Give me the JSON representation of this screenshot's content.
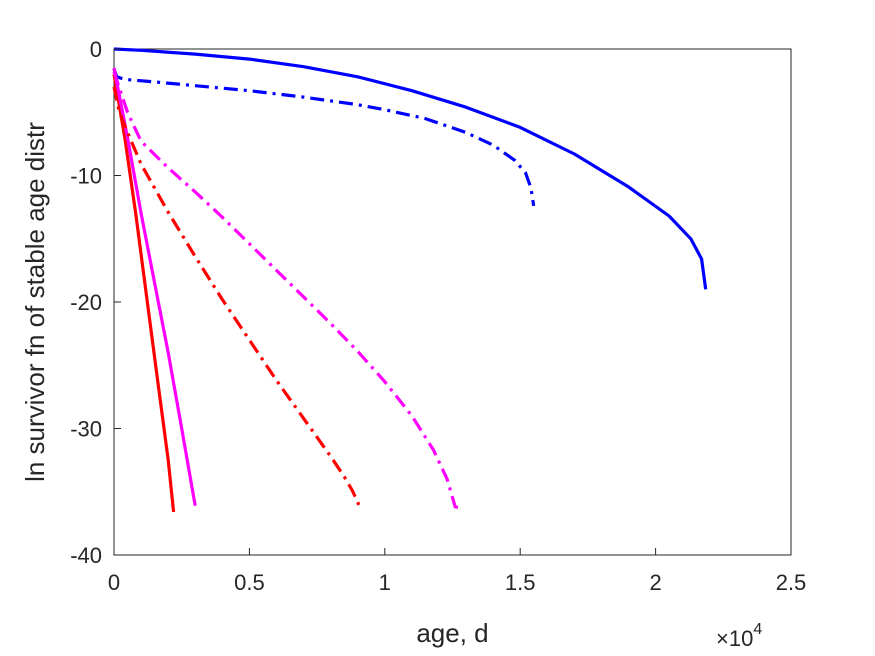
{
  "chart_data": {
    "type": "line",
    "title": "",
    "xlabel": "age, d",
    "ylabel": "ln survivor fn of stable age distr",
    "x_multiplier_label": {
      "base": "×10",
      "exponent": "4"
    },
    "xlim": [
      0,
      25000
    ],
    "ylim": [
      -40,
      0
    ],
    "xticks": [
      0,
      5000,
      10000,
      15000,
      20000,
      25000
    ],
    "xtick_labels": [
      "0",
      "0.5",
      "1",
      "1.5",
      "2",
      "2.5"
    ],
    "yticks": [
      0,
      -10,
      -20,
      -30,
      -40
    ],
    "ytick_labels": [
      "0",
      "-10",
      "-20",
      "-30",
      "-40"
    ],
    "grid": false,
    "legend": "none",
    "series": [
      {
        "color": "#0000ff",
        "style": "solid",
        "x": [
          0,
          1000,
          3000,
          5000,
          7000,
          9000,
          11000,
          13000,
          15000,
          17000,
          19000,
          20500,
          21300,
          21700,
          21850
        ],
        "y": [
          0,
          -0.1,
          -0.4,
          -0.8,
          -1.4,
          -2.2,
          -3.3,
          -4.6,
          -6.2,
          -8.3,
          -10.9,
          -13.2,
          -15.0,
          -16.6,
          -19.0
        ]
      },
      {
        "color": "#0000ff",
        "style": "dashdot",
        "x": [
          0,
          100,
          400,
          1500,
          3000,
          5000,
          7000,
          9000,
          10000,
          11500,
          13000,
          14000,
          14800,
          15200,
          15400,
          15500
        ],
        "y": [
          -1.6,
          -2.2,
          -2.4,
          -2.6,
          -2.9,
          -3.3,
          -3.8,
          -4.4,
          -4.8,
          -5.5,
          -6.6,
          -7.6,
          -8.8,
          -9.8,
          -11.0,
          -12.4
        ]
      },
      {
        "color": "#ff0000",
        "style": "solid",
        "x": [
          0,
          400,
          800,
          1200,
          1600,
          2000,
          2200
        ],
        "y": [
          -2.0,
          -7.0,
          -13.0,
          -19.5,
          -26.0,
          -32.5,
          -36.6
        ]
      },
      {
        "color": "#ff00ff",
        "style": "solid",
        "x": [
          0,
          500,
          1000,
          1500,
          2000,
          2500,
          3000
        ],
        "y": [
          -1.5,
          -7.0,
          -13.0,
          -18.5,
          -24.0,
          -30.0,
          -36.1
        ]
      },
      {
        "color": "#ff0000",
        "style": "dashdot",
        "x": [
          0,
          200,
          500,
          1000,
          2000,
          3000,
          4000,
          5000,
          6000,
          7000,
          8000,
          8500,
          8800,
          9100
        ],
        "y": [
          -3.0,
          -5.0,
          -6.6,
          -9.1,
          -12.9,
          -16.4,
          -19.8,
          -23.0,
          -26.2,
          -29.2,
          -32.2,
          -33.8,
          -34.9,
          -36.3
        ]
      },
      {
        "color": "#ff00ff",
        "style": "dashdot",
        "x": [
          0,
          500,
          1000,
          2000,
          3000,
          4000,
          5000,
          6000,
          7000,
          8000,
          9000,
          10000,
          11000,
          11800,
          12300,
          12600,
          12900
        ],
        "y": [
          -1.8,
          -5.0,
          -7.3,
          -9.4,
          -11.3,
          -13.3,
          -15.4,
          -17.5,
          -19.6,
          -21.7,
          -23.9,
          -26.3,
          -29.0,
          -31.7,
          -34.0,
          -36.2,
          -36.3
        ]
      }
    ]
  }
}
